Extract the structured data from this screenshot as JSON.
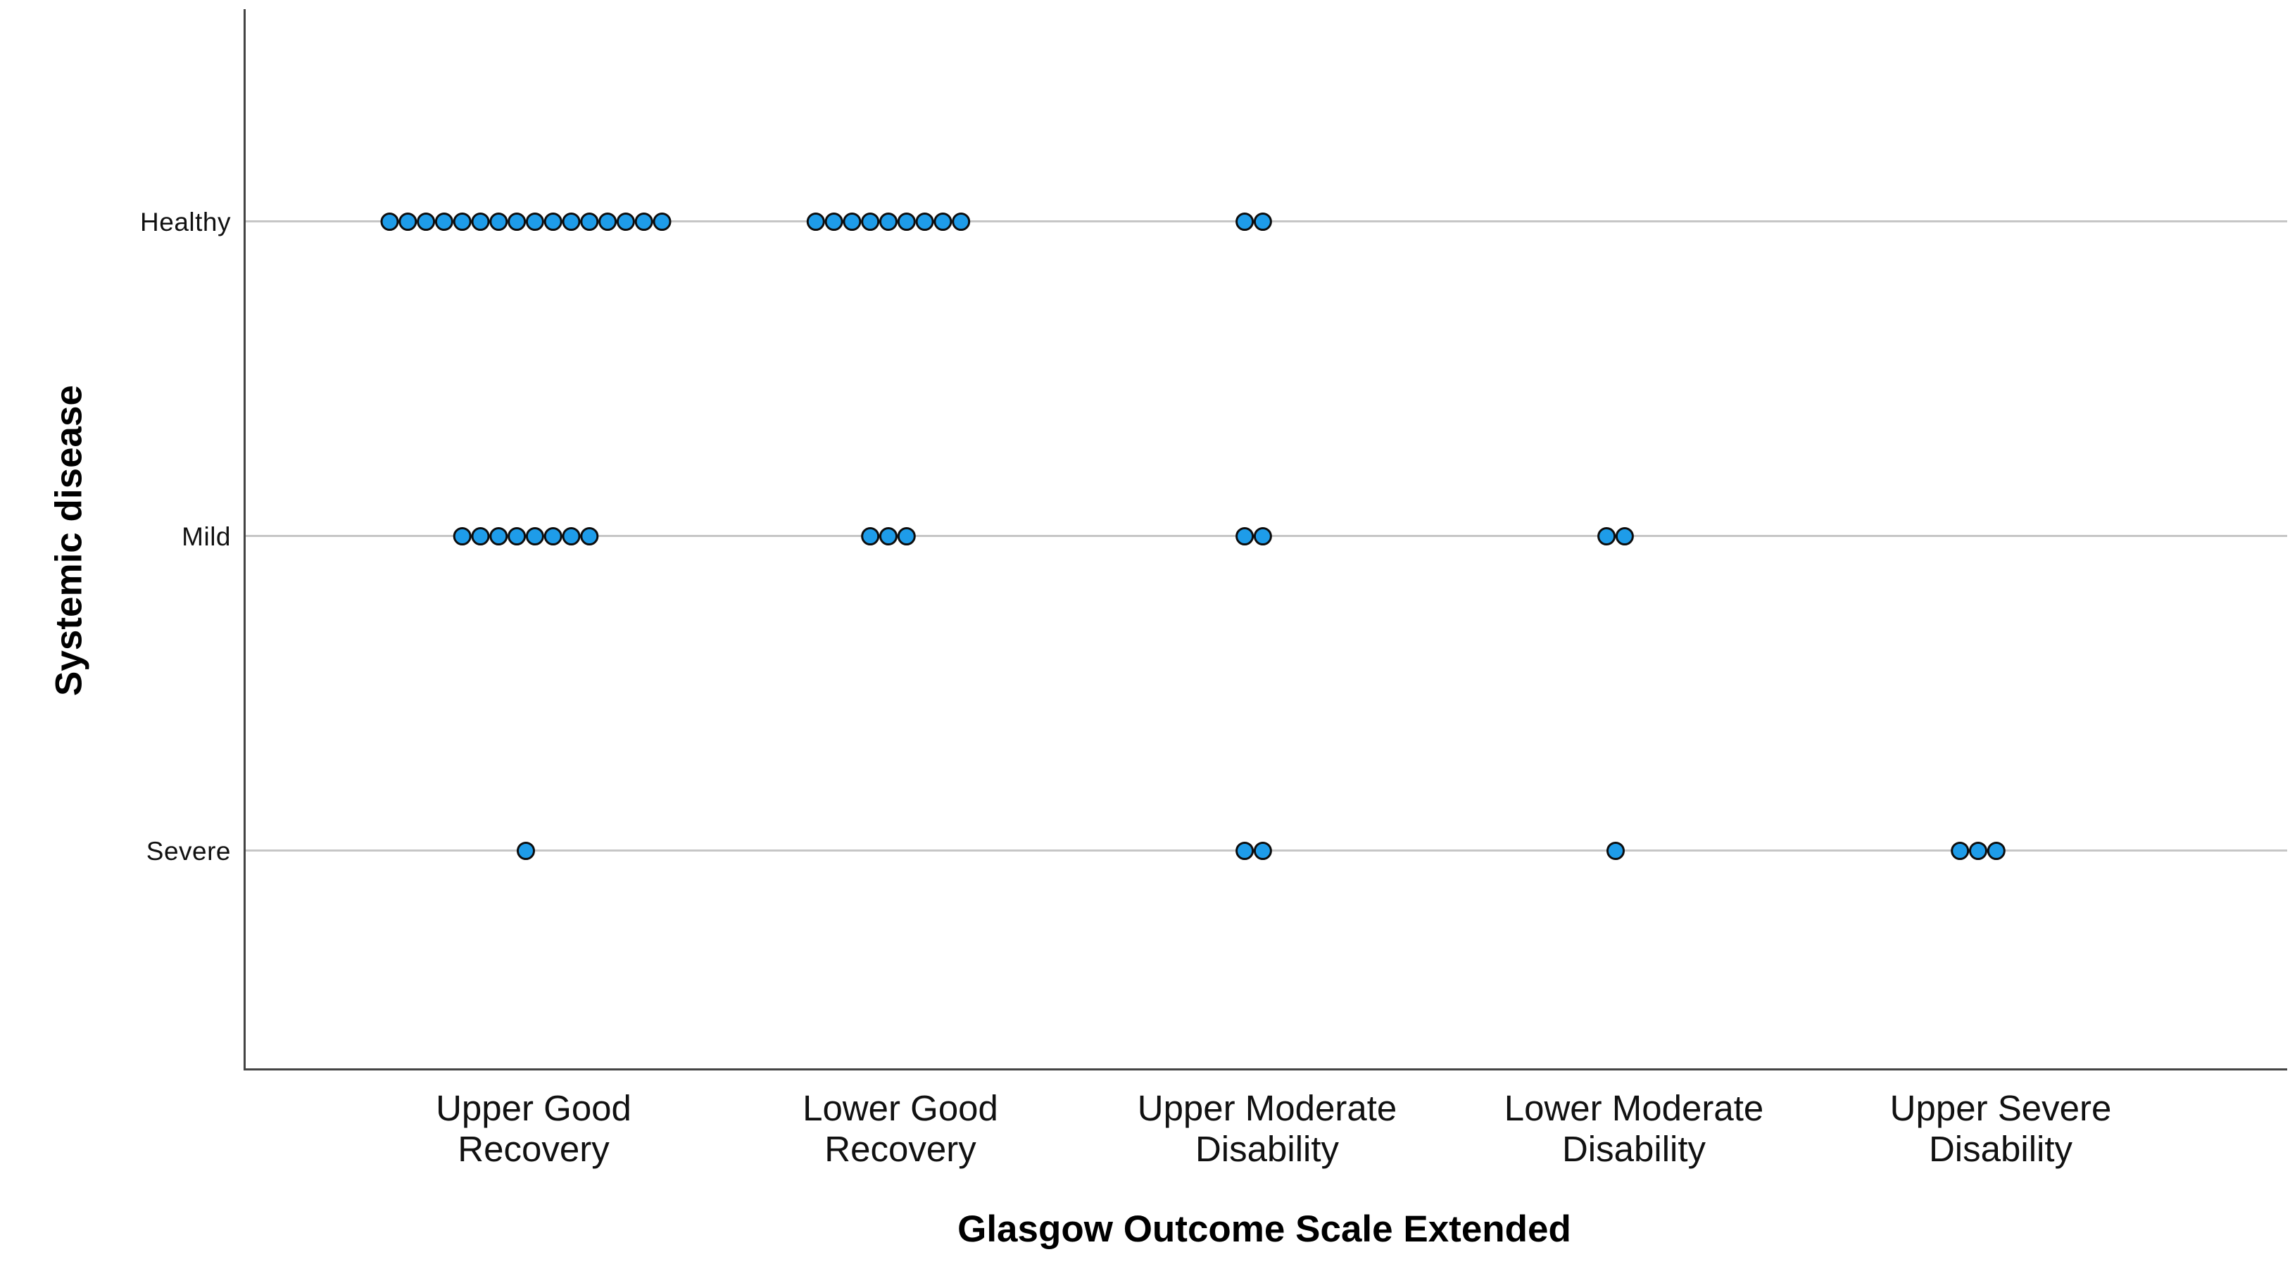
{
  "chart_data": {
    "type": "scatter",
    "subtype": "categorical-dot-plot",
    "title": "",
    "xlabel": "Glasgow Outcome Scale Extended",
    "ylabel": "Systemic disease",
    "x_categories": [
      "Upper Good Recovery",
      "Lower Good Recovery",
      "Upper Moderate Disability",
      "Lower Moderate Disability",
      "Upper Severe Disability"
    ],
    "x_tick_labels": [
      "Upper Good\nRecovery",
      "Lower Good\nRecovery",
      "Upper Moderate\nDisability",
      "Lower Moderate\nDisability",
      "Upper Severe\nDisability"
    ],
    "y_categories": [
      "Healthy",
      "Mild",
      "Severe"
    ],
    "series": [
      {
        "name": "Healthy",
        "counts": [
          16,
          9,
          2,
          0,
          0
        ]
      },
      {
        "name": "Mild",
        "counts": [
          8,
          3,
          2,
          2,
          0
        ]
      },
      {
        "name": "Severe",
        "counts": [
          1,
          0,
          2,
          1,
          3
        ]
      }
    ],
    "point_color": "#1e9ce9",
    "point_outline": "#0d0d0d",
    "axis_color": "#444444",
    "grid_color": "#c6c6c6",
    "grid": true,
    "legend": "none",
    "background": "#ffffff"
  }
}
